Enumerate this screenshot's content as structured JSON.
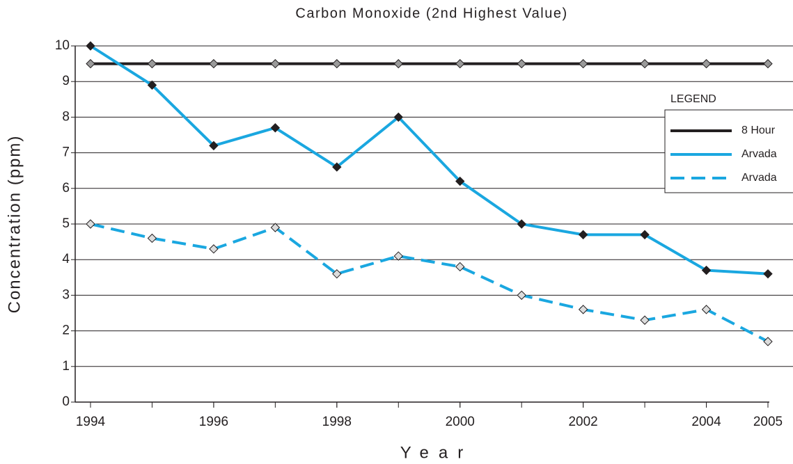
{
  "chart_data": {
    "type": "line",
    "title": "Carbon Monoxide (2nd Highest Value)",
    "x_label": "Year",
    "y_label": "Concentration (ppm)",
    "x": [
      1994,
      1995,
      1996,
      1997,
      1998,
      1999,
      2000,
      2001,
      2002,
      2003,
      2004,
      2005
    ],
    "xlim": [
      1994,
      2005
    ],
    "xticks": [
      1994,
      1996,
      1998,
      2000,
      2002,
      2004,
      2005
    ],
    "ylim": [
      0,
      10
    ],
    "yticks": [
      0,
      1,
      2,
      3,
      4,
      5,
      6,
      7,
      8,
      9,
      10
    ],
    "grid": true,
    "legend_title": "LEGEND",
    "legend_position": "right",
    "series": [
      {
        "name": "8 Hour",
        "color": "#231f20",
        "values": [
          9.5,
          9.5,
          9.5,
          9.5,
          9.5,
          9.5,
          9.5,
          9.5,
          9.5,
          9.5,
          9.5,
          9.5
        ]
      },
      {
        "name": "Arvada",
        "color": "#1aa7e0",
        "values": [
          10,
          8.9,
          7.2,
          7.7,
          6.6,
          8.0,
          6.2,
          5.0,
          4.7,
          4.7,
          3.7,
          3.6
        ]
      },
      {
        "name": "Arvada",
        "color": "#1aa7e0",
        "dashed": true,
        "values": [
          5.0,
          4.6,
          4.3,
          4.9,
          3.6,
          4.1,
          3.8,
          3.0,
          2.6,
          2.3,
          2.6,
          1.7
        ]
      }
    ]
  }
}
